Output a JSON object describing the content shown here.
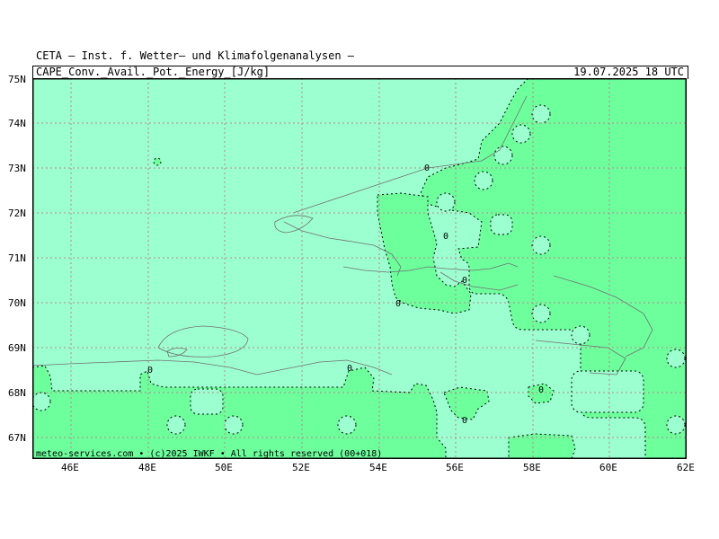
{
  "header": {
    "institute": "CETA — Inst. f. Wetter— und Klimafolgenanalysen —",
    "parameter": "CAPE_Conv._Avail._Pot._Energy_[J/kg]",
    "valid_time": "19.07.2025 18 UTC"
  },
  "footer": {
    "credit": "meteo-services.com • (c)2025 IWKF • All rights reserved (00+018)"
  },
  "axes": {
    "lat_labels": [
      "75N",
      "74N",
      "73N",
      "72N",
      "71N",
      "70N",
      "69N",
      "68N",
      "67N"
    ],
    "lon_labels": [
      "46E",
      "48E",
      "50E",
      "52E",
      "54E",
      "56E",
      "58E",
      "60E",
      "62E"
    ]
  },
  "contour_labels": [
    "0",
    "0",
    "0",
    "0",
    "0",
    "0",
    "0",
    "0",
    "0"
  ],
  "colors": {
    "zero_field": "#9cffd0",
    "positive_field": "#6dff9c",
    "coastline": "#707070",
    "grid": "#b88a8a"
  }
}
